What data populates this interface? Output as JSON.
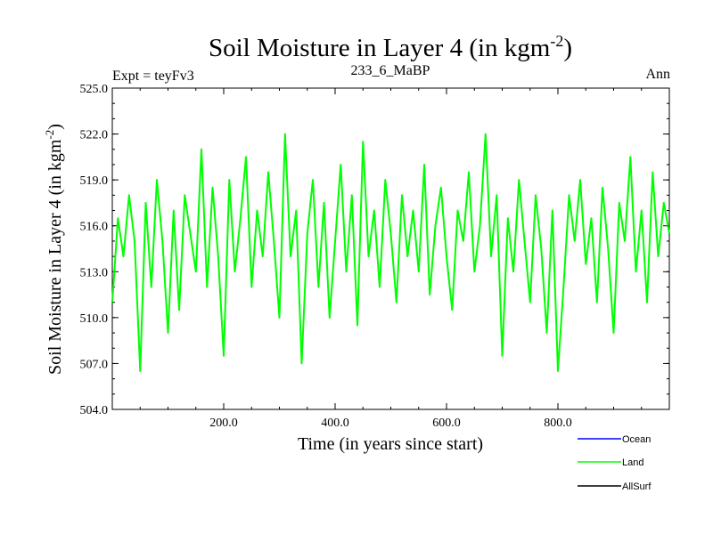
{
  "chart_data": {
    "type": "line",
    "title": "Soil Moisture in Layer 4 (in kgm",
    "title_sup": "-2",
    "title_close": ")",
    "subtitle_left": "Expt = teyFv3",
    "subtitle_center": "233_6_MaBP",
    "subtitle_right": "Ann",
    "xlabel": "Time (in years since start)",
    "ylabel": "Soil Moisture in Layer 4 (in kgm",
    "ylabel_sup": "-2",
    "ylabel_close": ")",
    "xlim": [
      0,
      1000
    ],
    "ylim": [
      504.0,
      525.0
    ],
    "xticks": [
      200,
      400,
      600,
      800
    ],
    "xtick_labels": [
      "200.0",
      "400.0",
      "600.0",
      "800.0"
    ],
    "yticks": [
      504,
      507,
      510,
      513,
      516,
      519,
      522,
      525
    ],
    "ytick_labels": [
      "504.0",
      "507.0",
      "510.0",
      "513.0",
      "516.0",
      "519.0",
      "522.0",
      "525.0"
    ],
    "series": [
      {
        "name": "Land",
        "color": "#00ff00",
        "x": [
          0,
          10,
          20,
          30,
          40,
          50,
          60,
          70,
          80,
          90,
          100,
          110,
          120,
          130,
          140,
          150,
          160,
          170,
          180,
          190,
          200,
          210,
          220,
          230,
          240,
          250,
          260,
          270,
          280,
          290,
          300,
          310,
          320,
          330,
          340,
          350,
          360,
          370,
          380,
          390,
          400,
          410,
          420,
          430,
          440,
          450,
          460,
          470,
          480,
          490,
          500,
          510,
          520,
          530,
          540,
          550,
          560,
          570,
          580,
          590,
          600,
          610,
          620,
          630,
          640,
          650,
          660,
          670,
          680,
          690,
          700,
          710,
          720,
          730,
          740,
          750,
          760,
          770,
          780,
          790,
          800,
          810,
          820,
          830,
          840,
          850,
          860,
          870,
          880,
          890,
          900,
          910,
          920,
          930,
          940,
          950,
          960,
          970,
          980,
          990,
          1000
        ],
        "values": [
          511.0,
          516.5,
          514.0,
          518.0,
          515.0,
          506.5,
          517.5,
          512.0,
          519.0,
          515.0,
          509.0,
          517.0,
          510.5,
          518.0,
          515.5,
          513.0,
          521.0,
          512.0,
          518.5,
          514.0,
          507.5,
          519.0,
          513.0,
          516.5,
          520.5,
          512.0,
          517.0,
          514.0,
          519.5,
          515.0,
          510.0,
          522.0,
          514.0,
          517.0,
          507.0,
          515.5,
          519.0,
          512.0,
          517.5,
          510.0,
          515.0,
          520.0,
          513.0,
          518.0,
          509.5,
          521.5,
          514.0,
          517.0,
          512.0,
          519.0,
          515.5,
          511.0,
          518.0,
          514.0,
          517.0,
          513.0,
          520.0,
          511.5,
          516.0,
          518.5,
          514.0,
          510.5,
          517.0,
          515.0,
          519.5,
          513.0,
          516.0,
          522.0,
          514.0,
          518.0,
          507.5,
          516.5,
          513.0,
          519.0,
          515.0,
          511.0,
          518.0,
          514.5,
          509.0,
          517.0,
          506.5,
          512.0,
          518.0,
          515.0,
          519.0,
          513.5,
          516.5,
          511.0,
          518.5,
          514.5,
          509.0,
          517.5,
          515.0,
          520.5,
          513.0,
          517.0,
          511.0,
          519.5,
          514.0,
          517.5,
          515.5
        ]
      }
    ],
    "legend": {
      "position": "bottom-right",
      "entries": [
        {
          "name": "Ocean",
          "color": "#0000ff"
        },
        {
          "name": "Land",
          "color": "#00ff00"
        },
        {
          "name": "AllSurf",
          "color": "#000000"
        }
      ]
    }
  }
}
